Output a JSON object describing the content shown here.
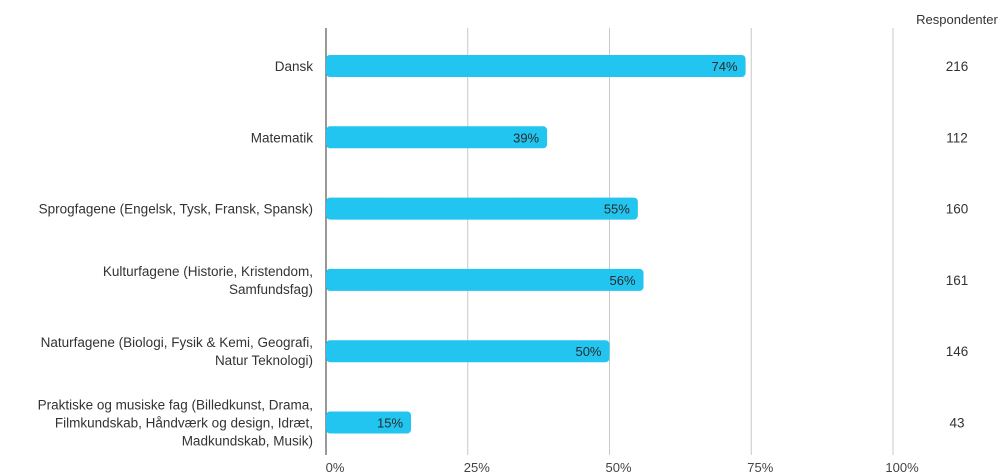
{
  "chart_data": {
    "type": "bar",
    "orientation": "horizontal",
    "categories": [
      [
        "Dansk"
      ],
      [
        "Matematik"
      ],
      [
        "Sprogfagene (Engelsk, Tysk, Fransk, Spansk)"
      ],
      [
        "Kulturfagene (Historie, Kristendom,",
        "Samfundsfag)"
      ],
      [
        "Naturfagene (Biologi, Fysik & Kemi, Geografi,",
        "Natur Teknologi)"
      ],
      [
        "Praktiske og musiske fag (Billedkunst, Drama,",
        "Filmkundskab, Håndværk og design, Idræt,",
        "Madkundskab, Musik)"
      ]
    ],
    "values": [
      74,
      39,
      55,
      56,
      50,
      15
    ],
    "value_labels": [
      "74%",
      "39%",
      "55%",
      "56%",
      "50%",
      "15%"
    ],
    "xlim": [
      0,
      100
    ],
    "x_ticks": [
      0,
      25,
      50,
      75,
      100
    ],
    "x_tick_labels": [
      "0%",
      "25%",
      "50%",
      "75%",
      "100%"
    ],
    "grid": true,
    "bar_color": "#22c4f0",
    "respondents_header": "Respondenter",
    "respondents": [
      "216",
      "112",
      "160",
      "161",
      "146",
      "43"
    ]
  }
}
